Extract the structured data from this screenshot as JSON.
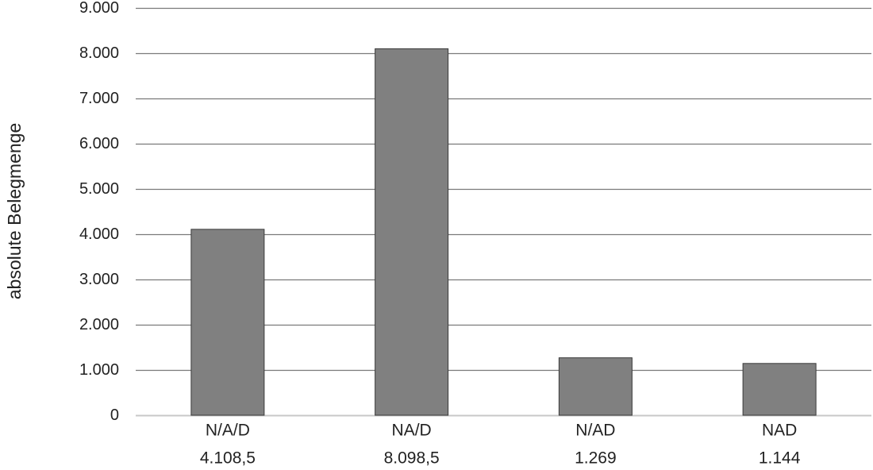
{
  "chart_data": {
    "type": "bar",
    "title": "",
    "xlabel": "",
    "ylabel": "absolute Belegmenge",
    "categories": [
      "N/A/D",
      "NA/D",
      "N/AD",
      "NAD"
    ],
    "values": [
      4108.5,
      8098.5,
      1269,
      1144
    ],
    "value_labels": [
      "4.108,5",
      "8.098,5",
      "1.269",
      "1.144"
    ],
    "ylim": [
      0,
      9000
    ],
    "yticks": [
      0,
      1000,
      2000,
      3000,
      4000,
      5000,
      6000,
      7000,
      8000,
      9000
    ],
    "ytick_labels": [
      "0",
      "1.000",
      "2.000",
      "3.000",
      "4.000",
      "5.000",
      "6.000",
      "7.000",
      "8.000",
      "9.000"
    ],
    "grid": true,
    "legend": "none",
    "colors": {
      "bar": "#808080",
      "bar_edge": "#3a3a3a",
      "grid": "#7a7a7a",
      "baseline": "#c8c8c8",
      "text": "#222222"
    }
  }
}
